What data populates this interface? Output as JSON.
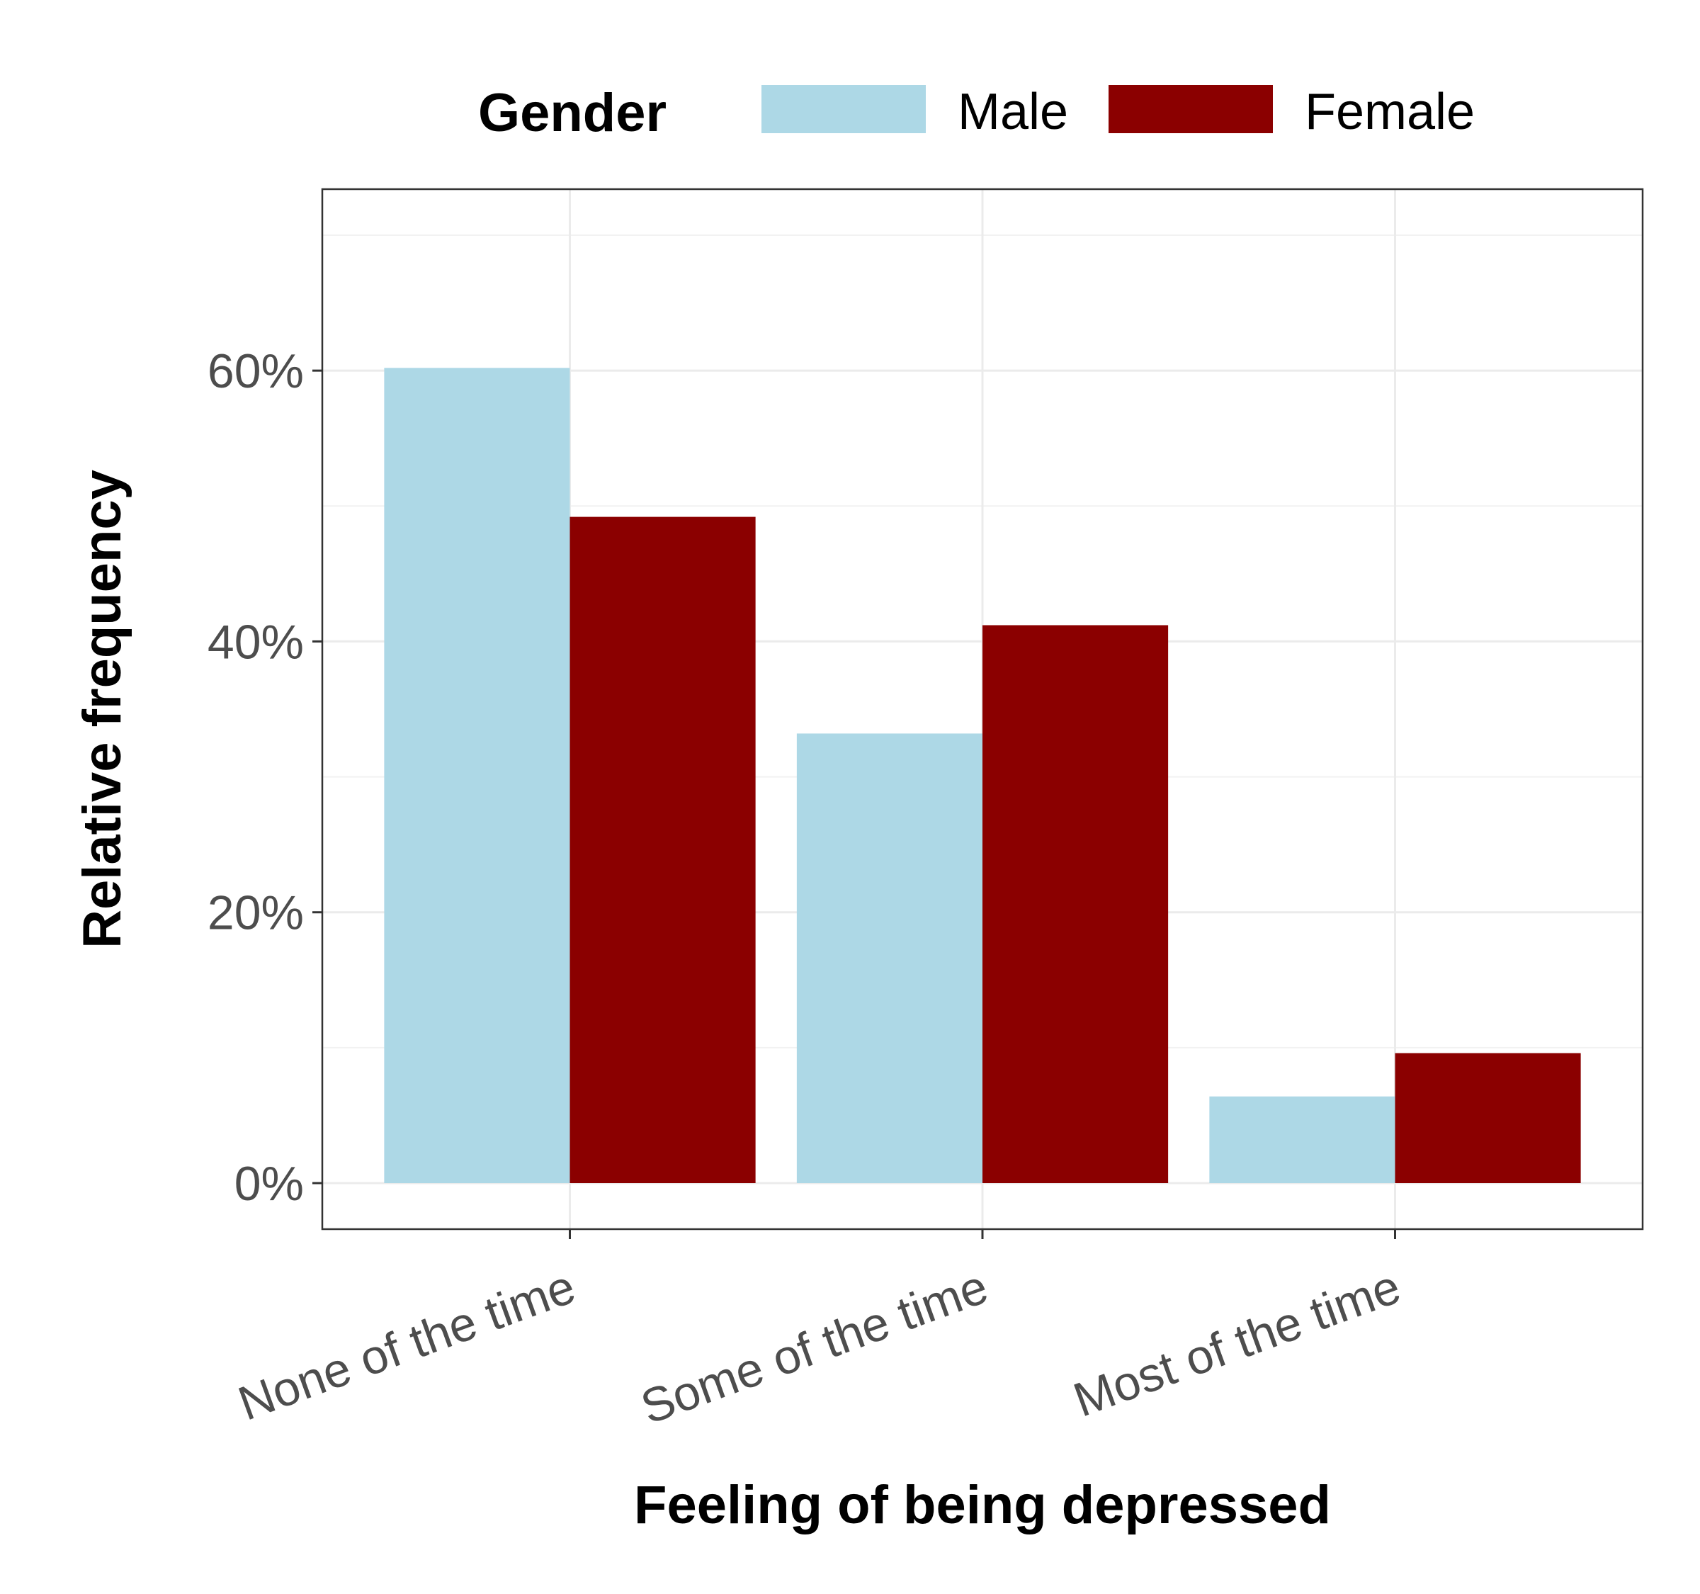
{
  "chart_data": {
    "type": "bar",
    "title": "",
    "xlabel": "Feeling of being depressed",
    "ylabel": "Relative frequency",
    "categories": [
      "None of the time",
      "Some of the time",
      "Most of the time"
    ],
    "series": [
      {
        "name": "Male",
        "color": "#add8e6",
        "values": [
          60.2,
          33.2,
          6.4
        ]
      },
      {
        "name": "Female",
        "color": "#8b0000",
        "values": [
          49.2,
          41.2,
          9.6
        ]
      }
    ],
    "yticks": [
      0,
      20,
      40,
      60
    ],
    "ytick_labels": [
      "0%",
      "20%",
      "40%",
      "60%"
    ],
    "ylim": [
      -3.4,
      73.4
    ],
    "grid": true,
    "legend": {
      "title": "Gender",
      "position": "top"
    }
  }
}
